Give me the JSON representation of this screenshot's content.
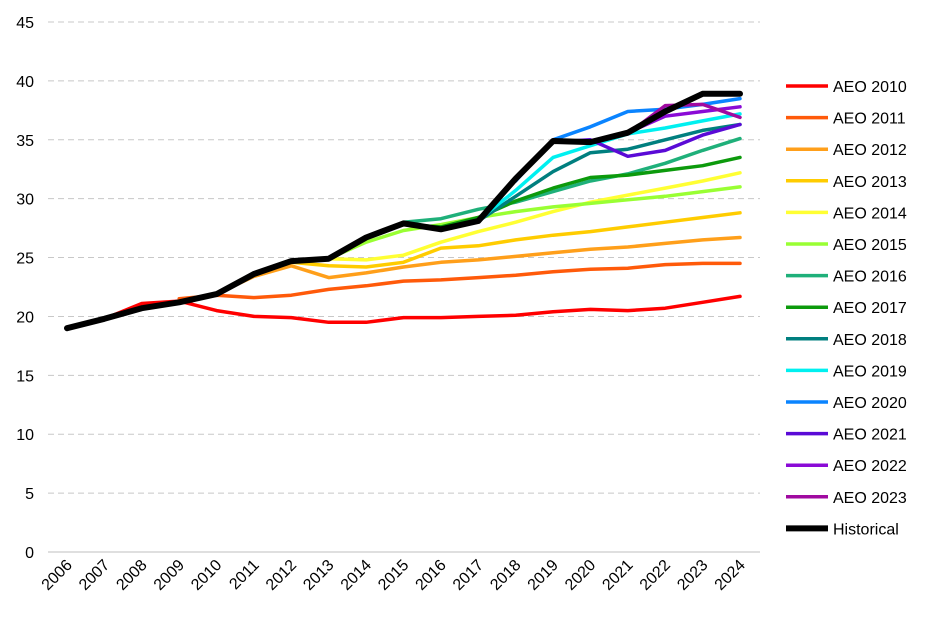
{
  "chart_data": {
    "type": "line",
    "title": "",
    "xlabel": "",
    "ylabel": "",
    "ylim": [
      0,
      45
    ],
    "yticks": [
      0,
      5,
      10,
      15,
      20,
      25,
      30,
      35,
      40,
      45
    ],
    "grid": true,
    "legend_position": "right",
    "categories": [
      "2006",
      "2007",
      "2008",
      "2009",
      "2010",
      "2011",
      "2012",
      "2013",
      "2014",
      "2015",
      "2016",
      "2017",
      "2018",
      "2019",
      "2020",
      "2021",
      "2022",
      "2023",
      "2024"
    ],
    "series": [
      {
        "name": "AEO 2010",
        "color": "#ff0000",
        "values": [
          19.0,
          19.8,
          21.1,
          21.3,
          20.5,
          20.0,
          19.9,
          19.5,
          19.5,
          19.9,
          19.9,
          20.0,
          20.1,
          20.4,
          20.6,
          20.5,
          20.7,
          21.2,
          21.7
        ]
      },
      {
        "name": "AEO 2011",
        "color": "#ff5a0a",
        "values": [
          null,
          null,
          null,
          21.5,
          21.8,
          21.6,
          21.8,
          22.3,
          22.6,
          23.0,
          23.1,
          23.3,
          23.5,
          23.8,
          24.0,
          24.1,
          24.4,
          24.5,
          24.5
        ]
      },
      {
        "name": "AEO 2012",
        "color": "#ff9f1a",
        "values": [
          null,
          null,
          null,
          null,
          21.9,
          23.4,
          24.3,
          23.3,
          23.7,
          24.2,
          24.6,
          24.8,
          25.1,
          25.4,
          25.7,
          25.9,
          26.2,
          26.5,
          26.7
        ]
      },
      {
        "name": "AEO 2013",
        "color": "#ffcc00",
        "values": [
          null,
          null,
          null,
          null,
          null,
          23.5,
          24.6,
          24.3,
          24.2,
          24.6,
          25.8,
          26.0,
          26.5,
          26.9,
          27.2,
          27.6,
          28.0,
          28.4,
          28.8
        ]
      },
      {
        "name": "AEO 2014",
        "color": "#ffff33",
        "values": [
          null,
          null,
          null,
          null,
          null,
          null,
          24.7,
          24.9,
          24.8,
          25.2,
          26.3,
          27.2,
          28.0,
          28.9,
          29.7,
          30.3,
          30.9,
          31.5,
          32.2
        ]
      },
      {
        "name": "AEO 2015",
        "color": "#99ff33",
        "values": [
          null,
          null,
          null,
          null,
          null,
          null,
          null,
          24.9,
          26.3,
          27.3,
          27.8,
          28.4,
          28.9,
          29.3,
          29.6,
          29.9,
          30.2,
          30.6,
          31.0
        ]
      },
      {
        "name": "AEO 2016",
        "color": "#1fb07a",
        "values": [
          null,
          null,
          null,
          null,
          null,
          null,
          null,
          null,
          26.6,
          28.0,
          28.3,
          29.1,
          29.7,
          30.6,
          31.5,
          32.1,
          33.0,
          34.1,
          35.1
        ]
      },
      {
        "name": "AEO 2017",
        "color": "#0c9a0c",
        "values": [
          null,
          null,
          null,
          null,
          null,
          null,
          null,
          null,
          null,
          27.8,
          27.6,
          28.4,
          29.8,
          30.9,
          31.8,
          32.0,
          32.4,
          32.8,
          33.5
        ]
      },
      {
        "name": "AEO 2018",
        "color": "#007f7f",
        "values": [
          null,
          null,
          null,
          null,
          null,
          null,
          null,
          null,
          null,
          null,
          27.4,
          28.1,
          30.2,
          32.3,
          33.9,
          34.2,
          35.0,
          35.8,
          36.3
        ]
      },
      {
        "name": "AEO 2019",
        "color": "#00f0f0",
        "values": [
          null,
          null,
          null,
          null,
          null,
          null,
          null,
          null,
          null,
          null,
          null,
          28.2,
          30.7,
          33.5,
          34.5,
          35.5,
          36.0,
          36.6,
          37.2
        ]
      },
      {
        "name": "AEO 2020",
        "color": "#0a84ff",
        "values": [
          null,
          null,
          null,
          null,
          null,
          null,
          null,
          null,
          null,
          null,
          null,
          null,
          31.5,
          35.0,
          36.1,
          37.4,
          37.6,
          38.0,
          38.5
        ]
      },
      {
        "name": "AEO 2021",
        "color": "#5a0ad6",
        "values": [
          null,
          null,
          null,
          null,
          null,
          null,
          null,
          null,
          null,
          null,
          null,
          null,
          null,
          34.8,
          35.0,
          33.6,
          34.1,
          35.4,
          36.3
        ]
      },
      {
        "name": "AEO 2022",
        "color": "#8a0ad6",
        "values": [
          null,
          null,
          null,
          null,
          null,
          null,
          null,
          null,
          null,
          null,
          null,
          null,
          null,
          null,
          34.9,
          35.6,
          37.0,
          37.4,
          37.8
        ]
      },
      {
        "name": "AEO 2023",
        "color": "#a00aa0",
        "values": [
          null,
          null,
          null,
          null,
          null,
          null,
          null,
          null,
          null,
          null,
          null,
          null,
          null,
          null,
          null,
          35.5,
          37.9,
          38.0,
          36.9
        ]
      },
      {
        "name": "Historical",
        "color": "#000000",
        "values": [
          19.0,
          19.8,
          20.7,
          21.2,
          21.9,
          23.6,
          24.7,
          24.9,
          26.7,
          27.9,
          27.4,
          28.1,
          31.7,
          34.9,
          34.8,
          35.6,
          37.4,
          38.9,
          38.9
        ]
      }
    ]
  }
}
